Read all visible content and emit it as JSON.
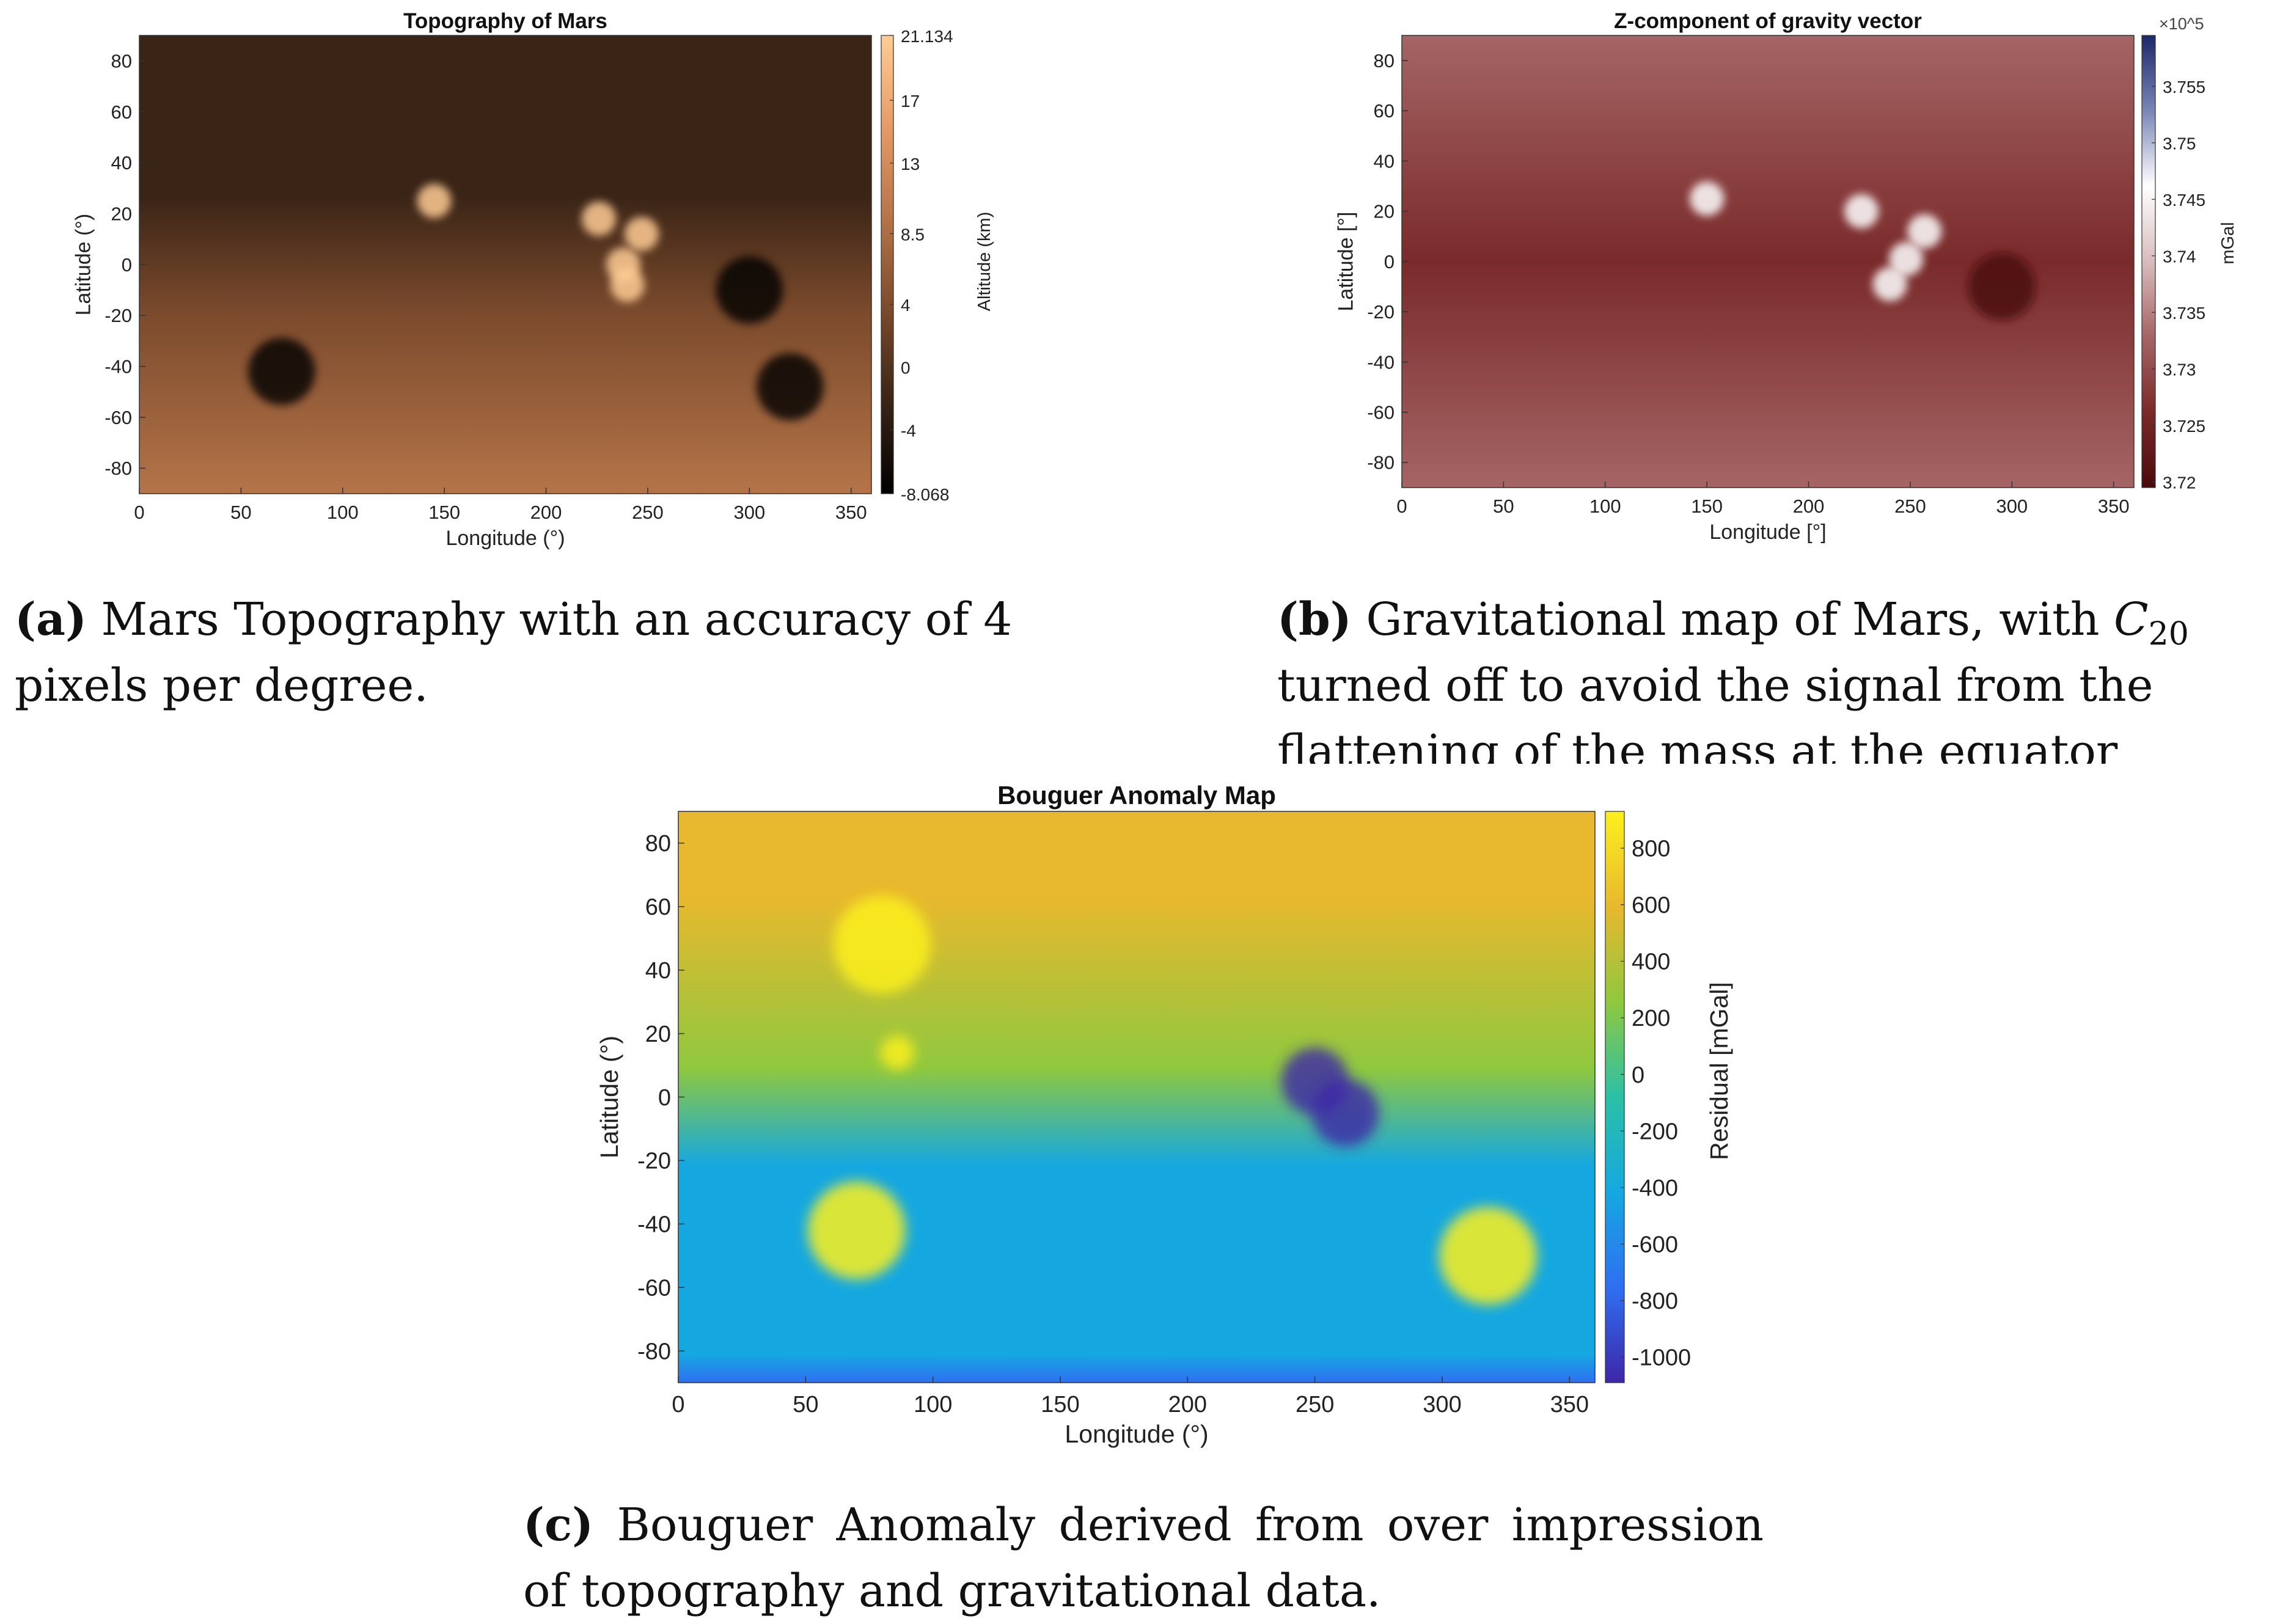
{
  "chart_data": [
    {
      "id": "a",
      "type": "heatmap",
      "title": "Topography of Mars",
      "xlabel": "Longitude (°)",
      "ylabel": "Latitude (°)",
      "colorbar_label": "Altitude (km)",
      "xlim": [
        0,
        360
      ],
      "ylim": [
        -90,
        90
      ],
      "x_ticks": [
        0,
        50,
        100,
        150,
        200,
        250,
        300,
        350
      ],
      "y_ticks": [
        80,
        60,
        40,
        20,
        0,
        -20,
        -40,
        -60,
        -80
      ],
      "colorbar_range": [
        -8.068,
        21.134
      ],
      "colorbar_ticks": [
        21.134,
        17,
        13,
        8.5,
        4,
        0,
        -4,
        -8.068
      ],
      "colormap": [
        "#000000",
        "#3a2416",
        "#7a4a2c",
        "#b57448",
        "#e69b66",
        "#ffcc94"
      ],
      "grid": false,
      "features": [
        {
          "lon": 145,
          "lat": 25,
          "level": "high"
        },
        {
          "lon": 226,
          "lat": 18,
          "level": "high"
        },
        {
          "lon": 247,
          "lat": 12,
          "level": "high"
        },
        {
          "lon": 238,
          "lat": 0,
          "level": "high"
        },
        {
          "lon": 240,
          "lat": -8,
          "level": "high"
        },
        {
          "lon": 70,
          "lat": -42,
          "level": "low"
        },
        {
          "lon": 320,
          "lat": -48,
          "level": "low"
        },
        {
          "lon": 300,
          "lat": -10,
          "level": "low"
        }
      ]
    },
    {
      "id": "b",
      "type": "heatmap",
      "title": "Z-component of gravity vector",
      "xlabel": "Longitude [°]",
      "ylabel": "Latitude [°]",
      "colorbar_label": "mGal",
      "colorbar_exponent": "×10^5",
      "xlim": [
        0,
        360
      ],
      "ylim": [
        -90,
        90
      ],
      "x_ticks": [
        0,
        50,
        100,
        150,
        200,
        250,
        300,
        350
      ],
      "y_ticks": [
        80,
        60,
        40,
        20,
        0,
        -20,
        -40,
        -60,
        -80
      ],
      "colorbar_range": [
        3.7195,
        3.7595
      ],
      "colorbar_ticks": [
        3.755,
        3.75,
        3.745,
        3.74,
        3.735,
        3.73,
        3.725,
        3.72
      ],
      "colormap": [
        "#4a0a0a",
        "#7a2a2a",
        "#a56565",
        "#d8bcbc",
        "#ffffff",
        "#7a86b5",
        "#1c2868"
      ],
      "grid": false,
      "features": [
        {
          "lon": 226,
          "lat": 20,
          "level": "high"
        },
        {
          "lon": 257,
          "lat": 12,
          "level": "high"
        },
        {
          "lon": 248,
          "lat": 1,
          "level": "high"
        },
        {
          "lon": 240,
          "lat": -9,
          "level": "high"
        },
        {
          "lon": 150,
          "lat": 25,
          "level": "high"
        },
        {
          "lon": 295,
          "lat": -10,
          "level": "low"
        }
      ]
    },
    {
      "id": "c",
      "type": "heatmap",
      "title": "Bouguer Anomaly Map",
      "xlabel": "Longitude (°)",
      "ylabel": "Latitude (°)",
      "colorbar_label": "Residual [mGal]",
      "xlim": [
        0,
        360
      ],
      "ylim": [
        -90,
        90
      ],
      "x_ticks": [
        0,
        50,
        100,
        150,
        200,
        250,
        300,
        350
      ],
      "y_ticks": [
        80,
        60,
        40,
        20,
        0,
        -20,
        -40,
        -60,
        -80
      ],
      "colorbar_range": [
        -1090,
        930
      ],
      "colorbar_ticks": [
        800,
        600,
        400,
        200,
        0,
        -200,
        -400,
        -600,
        -800,
        -1000
      ],
      "colormap": [
        "#3e26a8",
        "#2f6ff2",
        "#15a8e0",
        "#2bc0a6",
        "#8fc83f",
        "#e8b82e",
        "#fcf01e"
      ],
      "grid": false,
      "features": [
        {
          "lon": 70,
          "lat": -42,
          "level": "high"
        },
        {
          "lon": 80,
          "lat": 48,
          "level": "high"
        },
        {
          "lon": 86,
          "lat": 14,
          "level": "high"
        },
        {
          "lon": 318,
          "lat": -50,
          "level": "high"
        },
        {
          "lon": 250,
          "lat": 5,
          "level": "low"
        },
        {
          "lon": 262,
          "lat": -5,
          "level": "low"
        }
      ]
    }
  ],
  "captions": {
    "a_tag": "(a)",
    "a_text": "Mars Topography with an accuracy of 4 pixels per degree.",
    "b_tag": "(b)",
    "b_text_1": "Gravitational map of Mars, with",
    "b_symbol": "C",
    "b_subscript": "20",
    "b_text_2": "turned off to avoid the signal from the flattening of the mass at the equator",
    "c_tag": "(c)",
    "c_text": "Bouguer Anomaly derived from over impression of topography and gravitational data."
  }
}
